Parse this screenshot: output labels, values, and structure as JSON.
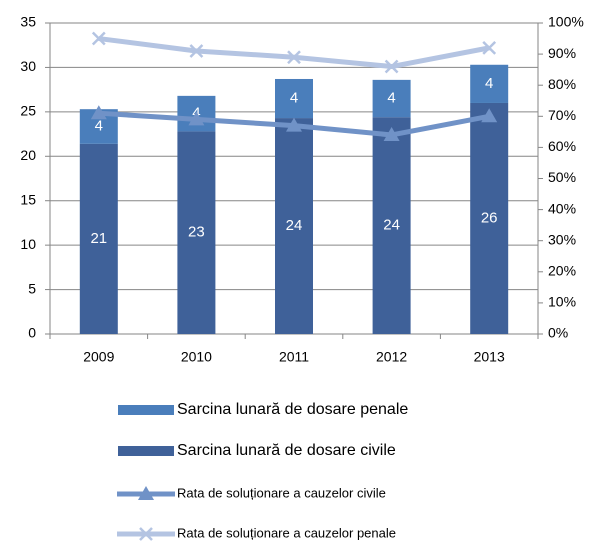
{
  "chart_data": {
    "type": "bar",
    "categories": [
      "2009",
      "2010",
      "2011",
      "2012",
      "2013"
    ],
    "series": [
      {
        "name": "Sarcina lunară de dosare civile",
        "color": "#3f6199",
        "values": [
          21.4,
          22.8,
          24.3,
          24.4,
          26.0
        ],
        "value_labels": [
          "21",
          "23",
          "24",
          "24",
          "26"
        ]
      },
      {
        "name": "Sarcina lunară de dosare penale",
        "color": "#4a7ebb",
        "values": [
          3.9,
          4.0,
          4.4,
          4.2,
          4.3
        ],
        "value_labels": [
          "4",
          "4",
          "4",
          "4",
          "4"
        ]
      },
      {
        "name": "Rata de soluționare a cauzelor civile",
        "type": "line",
        "marker": "triangle",
        "axis": "y2",
        "color": "#7092c7",
        "values": [
          71,
          69,
          67,
          64,
          70
        ]
      },
      {
        "name": "Rata de soluționare a cauzelor penale",
        "type": "line",
        "marker": "x",
        "axis": "y2",
        "color": "#b4c4e2",
        "values": [
          95,
          91,
          89,
          86,
          92
        ]
      }
    ],
    "stacked": true,
    "ylim": [
      0,
      35
    ],
    "yticks": [
      0,
      5,
      10,
      15,
      20,
      25,
      30,
      35
    ],
    "y2lim": [
      0,
      100
    ],
    "y2ticks": [
      {
        "value": 0,
        "label": "0%"
      },
      {
        "value": 10,
        "label": "10%"
      },
      {
        "value": 20,
        "label": "20%"
      },
      {
        "value": 30,
        "label": "30%"
      },
      {
        "value": 40,
        "label": "40%"
      },
      {
        "value": 50,
        "label": "50%"
      },
      {
        "value": 60,
        "label": "60%"
      },
      {
        "value": 70,
        "label": "70%"
      },
      {
        "value": 80,
        "label": "80%"
      },
      {
        "value": 90,
        "label": "90%"
      },
      {
        "value": 100,
        "label": "100%"
      }
    ],
    "grid": true,
    "legend": "bottom"
  }
}
